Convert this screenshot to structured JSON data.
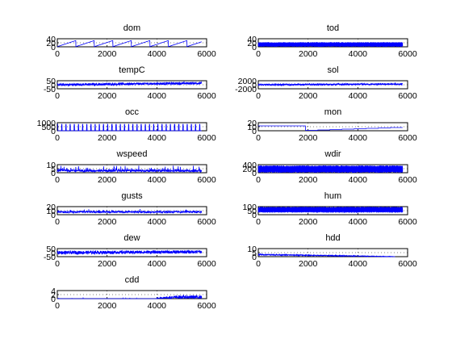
{
  "chart_data": [
    {
      "type": "line",
      "title": "dom",
      "xlim": [
        0,
        6000
      ],
      "ylim": [
        0,
        40
      ],
      "xticks": [
        "0",
        "2000",
        "4000",
        "6000"
      ],
      "yticks": [
        "0",
        "20",
        "40"
      ],
      "grid": "dotted",
      "series": [
        {
          "pattern": "sawtooth",
          "x": [
            0,
            5800
          ],
          "range": [
            1,
            31
          ],
          "period": 744
        }
      ]
    },
    {
      "type": "line",
      "title": "tod",
      "xlim": [
        0,
        6000
      ],
      "ylim": [
        0,
        40
      ],
      "xticks": [
        "0",
        "2000",
        "4000",
        "6000"
      ],
      "yticks": [
        "0",
        "20",
        "40"
      ],
      "grid": "dotted",
      "series": [
        {
          "pattern": "dense",
          "x": [
            0,
            5800
          ],
          "range": [
            0,
            23
          ]
        }
      ]
    },
    {
      "type": "line",
      "title": "tempC",
      "xlim": [
        0,
        6000
      ],
      "ylim": [
        -50,
        50
      ],
      "xticks": [
        "0",
        "2000",
        "4000",
        "6000"
      ],
      "yticks": [
        "-50",
        "0",
        "50"
      ],
      "grid": "dotted",
      "series": [
        {
          "pattern": "noise",
          "x": [
            0,
            5800
          ],
          "center": [
            0,
            20
          ],
          "spread": 15
        }
      ]
    },
    {
      "type": "line",
      "title": "sol",
      "xlim": [
        0,
        6000
      ],
      "ylim": [
        -2000,
        2000
      ],
      "xticks": [
        "0",
        "2000",
        "4000",
        "6000"
      ],
      "yticks": [
        "-2000",
        "0",
        "2000"
      ],
      "grid": "dotted",
      "series": [
        {
          "pattern": "noise",
          "x": [
            0,
            5800
          ],
          "center": [
            0,
            300
          ],
          "spread": 400
        }
      ]
    },
    {
      "type": "line",
      "title": "occ",
      "xlim": [
        0,
        6000
      ],
      "ylim": [
        0,
        1000
      ],
      "xticks": [
        "0",
        "2000",
        "4000",
        "6000"
      ],
      "yticks": [
        "0",
        "500",
        "1000"
      ],
      "grid": "dotted",
      "series": [
        {
          "pattern": "pulses",
          "x": [
            0,
            5800
          ],
          "range": [
            0,
            800
          ],
          "period": 168
        }
      ]
    },
    {
      "type": "line",
      "title": "mon",
      "xlim": [
        0,
        6000
      ],
      "ylim": [
        0,
        20
      ],
      "xticks": [
        "0",
        "2000",
        "4000",
        "6000"
      ],
      "yticks": [
        "0",
        "10",
        "20"
      ],
      "grid": "dotted",
      "series": [
        {
          "pattern": "drop",
          "x": [
            0,
            5800
          ],
          "start": 12,
          "dropAt": 1900,
          "levels": [
            1,
            2,
            3,
            4,
            5,
            6,
            7,
            8
          ]
        }
      ]
    },
    {
      "type": "line",
      "title": "wspeed",
      "xlim": [
        0,
        6000
      ],
      "ylim": [
        0,
        10
      ],
      "xticks": [
        "0",
        "2000",
        "4000",
        "6000"
      ],
      "yticks": [
        "0",
        "5",
        "10"
      ],
      "grid": "dotted",
      "series": [
        {
          "pattern": "noise-pos",
          "x": [
            0,
            5800
          ],
          "center": [
            2,
            2
          ],
          "spread": 2,
          "max": 9
        }
      ]
    },
    {
      "type": "line",
      "title": "wdir",
      "xlim": [
        0,
        6000
      ],
      "ylim": [
        0,
        400
      ],
      "xticks": [
        "0",
        "2000",
        "4000",
        "6000"
      ],
      "yticks": [
        "0",
        "200",
        "400"
      ],
      "grid": "dotted",
      "series": [
        {
          "pattern": "dense",
          "x": [
            0,
            5800
          ],
          "range": [
            0,
            360
          ]
        }
      ]
    },
    {
      "type": "line",
      "title": "gusts",
      "xlim": [
        0,
        6000
      ],
      "ylim": [
        0,
        20
      ],
      "xticks": [
        "0",
        "2000",
        "4000",
        "6000"
      ],
      "yticks": [
        "0",
        "10",
        "20"
      ],
      "grid": "dotted",
      "series": [
        {
          "pattern": "noise-pos",
          "x": [
            0,
            5800
          ],
          "center": [
            6,
            6
          ],
          "spread": 3,
          "max": 14
        }
      ]
    },
    {
      "type": "line",
      "title": "hum",
      "xlim": [
        0,
        6000
      ],
      "ylim": [
        0,
        100
      ],
      "xticks": [
        "0",
        "2000",
        "4000",
        "6000"
      ],
      "yticks": [
        "0",
        "50",
        "100"
      ],
      "grid": "dotted",
      "series": [
        {
          "pattern": "dense",
          "x": [
            0,
            5800
          ],
          "range": [
            25,
            98
          ]
        }
      ]
    },
    {
      "type": "line",
      "title": "dew",
      "xlim": [
        0,
        6000
      ],
      "ylim": [
        -50,
        50
      ],
      "xticks": [
        "0",
        "2000",
        "4000",
        "6000"
      ],
      "yticks": [
        "-50",
        "0",
        "50"
      ],
      "grid": "dotted",
      "series": [
        {
          "pattern": "noise",
          "x": [
            0,
            5800
          ],
          "center": [
            0,
            10
          ],
          "spread": 20
        }
      ]
    },
    {
      "type": "line",
      "title": "hdd",
      "xlim": [
        0,
        6000
      ],
      "ylim": [
        0,
        10
      ],
      "xticks": [
        "0",
        "2000",
        "4000",
        "6000"
      ],
      "yticks": [
        "0",
        "5",
        "10"
      ],
      "grid": "dotted",
      "series": [
        {
          "pattern": "decay",
          "x": [
            0,
            5500
          ],
          "center": [
            2.5,
            0
          ],
          "spread": 1.5
        }
      ]
    },
    {
      "type": "line",
      "title": "cdd",
      "xlim": [
        0,
        6000
      ],
      "ylim": [
        0,
        4
      ],
      "xticks": [
        "0",
        "2000",
        "4000",
        "6000"
      ],
      "yticks": [
        "0",
        "2",
        "4"
      ],
      "grid": "dotted",
      "series": [
        {
          "pattern": "grow",
          "x": [
            0,
            5800
          ],
          "zeroUntil": 4000,
          "max": 1.6
        }
      ]
    }
  ]
}
